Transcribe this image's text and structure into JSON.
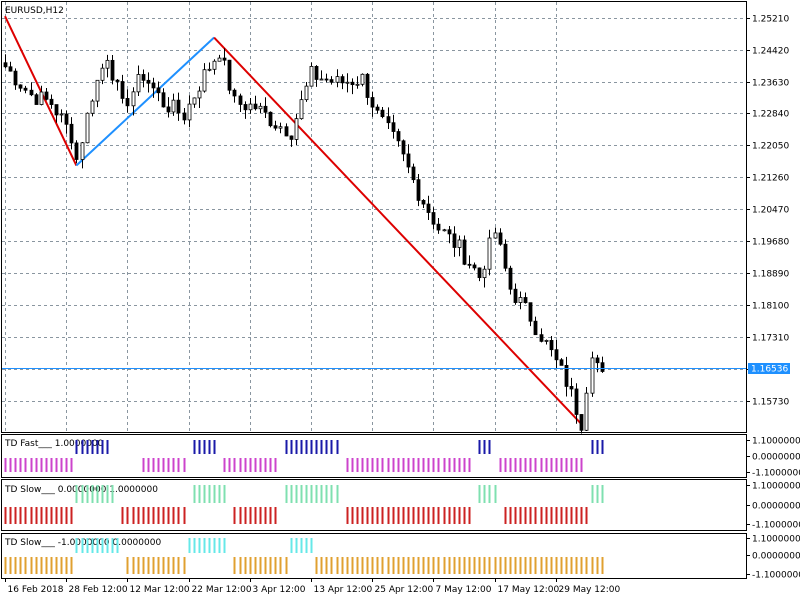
{
  "chart_data": {
    "type": "candlestick",
    "symbol_label": "EURUSD,H12",
    "price_ticks": [
      "1.25210",
      "1.24420",
      "1.23630",
      "1.22840",
      "1.22050",
      "1.21260",
      "1.20470",
      "1.19680",
      "1.18890",
      "1.18100",
      "1.17310",
      "1.16520",
      "1.15730"
    ],
    "ylim": [
      1.1495,
      1.256
    ],
    "current_price_label": "1.16536",
    "current_price": 1.16536,
    "time_ticks": [
      "16 Feb 2018",
      "28 Feb 12:00",
      "12 Mar 12:00",
      "22 Mar 12:00",
      "3 Apr 12:00",
      "13 Apr 12:00",
      "25 Apr 12:00",
      "7 May 12:00",
      "17 May 12:00",
      "29 May 12:00"
    ],
    "candle_count": 118,
    "close_path_points": [
      [
        0,
        1.24
      ],
      [
        5,
        1.233
      ],
      [
        9,
        1.231
      ],
      [
        13,
        1.223
      ],
      [
        14,
        1.217
      ],
      [
        17,
        1.233
      ],
      [
        20,
        1.243
      ],
      [
        23,
        1.23
      ],
      [
        27,
        1.238
      ],
      [
        31,
        1.231
      ],
      [
        35,
        1.228
      ],
      [
        39,
        1.238
      ],
      [
        42,
        1.244
      ],
      [
        45,
        1.231
      ],
      [
        49,
        1.23
      ],
      [
        53,
        1.226
      ],
      [
        56,
        1.224
      ],
      [
        60,
        1.238
      ],
      [
        65,
        1.236
      ],
      [
        70,
        1.237
      ],
      [
        73,
        1.228
      ],
      [
        77,
        1.22
      ],
      [
        81,
        1.209
      ],
      [
        85,
        1.2
      ],
      [
        89,
        1.195
      ],
      [
        93,
        1.188
      ],
      [
        96,
        1.199
      ],
      [
        99,
        1.185
      ],
      [
        103,
        1.178
      ],
      [
        107,
        1.169
      ],
      [
        110,
        1.162
      ],
      [
        113,
        1.152
      ],
      [
        115,
        1.17
      ],
      [
        117,
        1.163
      ]
    ],
    "zigzag": [
      {
        "color": "#dd0000",
        "points": [
          [
            0,
            1.2525
          ],
          [
            14,
            1.2155
          ]
        ]
      },
      {
        "color": "#1e90ff",
        "points": [
          [
            14,
            1.2155
          ],
          [
            41,
            1.2472
          ]
        ]
      },
      {
        "color": "#dd0000",
        "points": [
          [
            41,
            1.2472
          ],
          [
            113,
            1.1515
          ]
        ]
      }
    ],
    "indicators": [
      {
        "name": "TD Fast",
        "label": "TD Fast___ 1.0000000",
        "ticks": [
          "1.1000000",
          "0.0000000",
          "-1.1000000"
        ],
        "pos_color": "#1a1aa8",
        "neg_color": "#cc44cc",
        "segments": [
          [
            0,
            13,
            -1
          ],
          [
            14,
            20,
            1
          ],
          [
            27,
            35,
            -1
          ],
          [
            37,
            41,
            1
          ],
          [
            43,
            53,
            -1
          ],
          [
            55,
            65,
            1
          ],
          [
            67,
            91,
            -1
          ],
          [
            93,
            95,
            1
          ],
          [
            97,
            113,
            -1
          ],
          [
            115,
            117,
            1
          ]
        ]
      },
      {
        "name": "TD Slow",
        "label": "TD Slow___ 0.0000000 1.0000000",
        "ticks": [
          "1.1000000",
          "0.0000000",
          "-1.1000000"
        ],
        "pos_color": "#7fe0b0",
        "neg_color": "#cc2222",
        "segments": [
          [
            0,
            13,
            -1
          ],
          [
            14,
            21,
            1
          ],
          [
            23,
            35,
            -1
          ],
          [
            37,
            43,
            1
          ],
          [
            45,
            53,
            -1
          ],
          [
            55,
            65,
            1
          ],
          [
            67,
            91,
            -1
          ],
          [
            93,
            96,
            1
          ],
          [
            98,
            114,
            -1
          ],
          [
            115,
            117,
            1
          ]
        ]
      },
      {
        "name": "TD Slow",
        "label": "TD Slow___ -1.0000000 0.0000000",
        "ticks": [
          "1.1000000",
          "0.0000000",
          "-1.1000000"
        ],
        "pos_color": "#66e8e8",
        "neg_color": "#e0a030",
        "segments": [
          [
            0,
            13,
            -1
          ],
          [
            14,
            22,
            1
          ],
          [
            24,
            35,
            -1
          ],
          [
            36,
            43,
            1
          ],
          [
            45,
            55,
            -1
          ],
          [
            56,
            60,
            1
          ],
          [
            61,
            117,
            -1
          ]
        ]
      }
    ]
  }
}
